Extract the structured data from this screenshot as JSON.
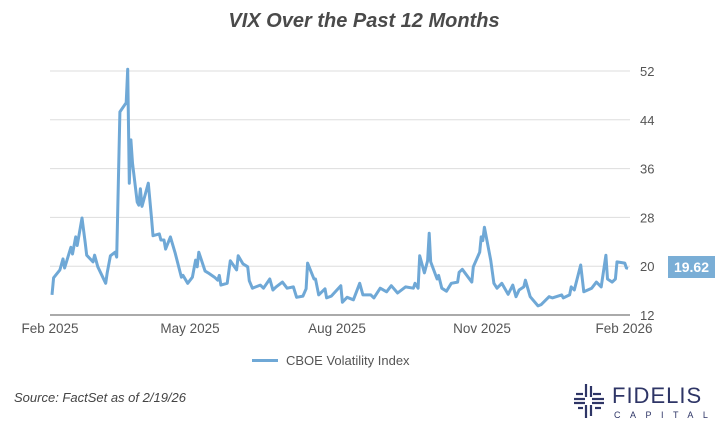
{
  "chart_data": {
    "type": "line",
    "title": "VIX Over the Past 12 Months",
    "xlabel": "",
    "ylabel": "",
    "ylim": [
      12,
      52
    ],
    "yticks": [
      "52",
      "44",
      "36",
      "28",
      "20",
      "12"
    ],
    "xticks": [
      "Feb 2025",
      "May 2025",
      "Aug 2025",
      "Nov 2025",
      "Feb 2026"
    ],
    "xlim": [
      "2025-02-19",
      "2026-02-19"
    ],
    "grid": true,
    "y_axis_side": "right",
    "legend_position": "bottom",
    "last_value_label": "19.62",
    "series": [
      {
        "name": "CBOE Volatility Index",
        "color": "#6fa8d6",
        "points": [
          [
            "2025-02-19",
            15.3
          ],
          [
            "2025-02-20",
            18.1
          ],
          [
            "2025-02-24",
            19.4
          ],
          [
            "2025-02-26",
            21.2
          ],
          [
            "2025-02-27",
            19.7
          ],
          [
            "2025-03-03",
            23.1
          ],
          [
            "2025-03-04",
            22.0
          ],
          [
            "2025-03-06",
            24.8
          ],
          [
            "2025-03-07",
            23.4
          ],
          [
            "2025-03-10",
            27.9
          ],
          [
            "2025-03-12",
            24.0
          ],
          [
            "2025-03-13",
            21.8
          ],
          [
            "2025-03-17",
            20.7
          ],
          [
            "2025-03-18",
            21.8
          ],
          [
            "2025-03-20",
            19.9
          ],
          [
            "2025-03-25",
            17.2
          ],
          [
            "2025-03-26",
            18.9
          ],
          [
            "2025-03-28",
            21.7
          ],
          [
            "2025-03-31",
            22.3
          ],
          [
            "2025-04-01",
            21.5
          ],
          [
            "2025-04-03",
            45.3
          ],
          [
            "2025-04-07",
            46.8
          ],
          [
            "2025-04-08",
            52.3
          ],
          [
            "2025-04-09",
            33.6
          ],
          [
            "2025-04-10",
            40.7
          ],
          [
            "2025-04-11",
            36.9
          ],
          [
            "2025-04-14",
            30.5
          ],
          [
            "2025-04-15",
            30.0
          ],
          [
            "2025-04-16",
            32.7
          ],
          [
            "2025-04-17",
            29.8
          ],
          [
            "2025-04-21",
            33.6
          ],
          [
            "2025-04-23",
            28.1
          ],
          [
            "2025-04-24",
            25.0
          ],
          [
            "2025-04-28",
            25.3
          ],
          [
            "2025-04-29",
            24.3
          ],
          [
            "2025-05-01",
            24.3
          ],
          [
            "2025-05-02",
            22.8
          ],
          [
            "2025-05-05",
            24.8
          ],
          [
            "2025-05-08",
            22.2
          ],
          [
            "2025-05-12",
            18.2
          ],
          [
            "2025-05-13",
            18.5
          ],
          [
            "2025-05-16",
            17.2
          ],
          [
            "2025-05-19",
            18.2
          ],
          [
            "2025-05-21",
            21.0
          ],
          [
            "2025-05-22",
            19.9
          ],
          [
            "2025-05-23",
            22.3
          ],
          [
            "2025-05-27",
            19.2
          ],
          [
            "2025-05-29",
            18.9
          ],
          [
            "2025-06-02",
            18.2
          ],
          [
            "2025-06-04",
            17.7
          ],
          [
            "2025-06-05",
            18.5
          ],
          [
            "2025-06-06",
            16.9
          ],
          [
            "2025-06-10",
            17.2
          ],
          [
            "2025-06-12",
            20.9
          ],
          [
            "2025-06-16",
            19.4
          ],
          [
            "2025-06-17",
            21.7
          ],
          [
            "2025-06-20",
            20.4
          ],
          [
            "2025-06-23",
            19.9
          ],
          [
            "2025-06-24",
            17.6
          ],
          [
            "2025-06-26",
            16.4
          ],
          [
            "2025-07-01",
            16.9
          ],
          [
            "2025-07-03",
            16.4
          ],
          [
            "2025-07-07",
            17.9
          ],
          [
            "2025-07-09",
            16.1
          ],
          [
            "2025-07-11",
            16.6
          ],
          [
            "2025-07-15",
            17.4
          ],
          [
            "2025-07-18",
            16.4
          ],
          [
            "2025-07-22",
            16.6
          ],
          [
            "2025-07-24",
            14.9
          ],
          [
            "2025-07-28",
            15.1
          ],
          [
            "2025-07-30",
            16.3
          ],
          [
            "2025-07-31",
            20.5
          ],
          [
            "2025-08-04",
            17.9
          ],
          [
            "2025-08-05",
            17.9
          ],
          [
            "2025-08-07",
            15.3
          ],
          [
            "2025-08-11",
            16.3
          ],
          [
            "2025-08-12",
            14.8
          ],
          [
            "2025-08-15",
            15.1
          ],
          [
            "2025-08-21",
            16.8
          ],
          [
            "2025-08-22",
            14.1
          ],
          [
            "2025-08-25",
            14.9
          ],
          [
            "2025-08-29",
            14.5
          ],
          [
            "2025-09-02",
            17.2
          ],
          [
            "2025-09-04",
            15.3
          ],
          [
            "2025-09-05",
            15.3
          ],
          [
            "2025-09-09",
            15.3
          ],
          [
            "2025-09-11",
            14.8
          ],
          [
            "2025-09-15",
            16.4
          ],
          [
            "2025-09-19",
            15.8
          ],
          [
            "2025-09-22",
            16.8
          ],
          [
            "2025-09-26",
            15.6
          ],
          [
            "2025-10-01",
            16.6
          ],
          [
            "2025-10-06",
            16.4
          ],
          [
            "2025-10-07",
            17.2
          ],
          [
            "2025-10-09",
            16.4
          ],
          [
            "2025-10-10",
            21.7
          ],
          [
            "2025-10-13",
            18.9
          ],
          [
            "2025-10-15",
            20.9
          ],
          [
            "2025-10-16",
            25.4
          ],
          [
            "2025-10-17",
            20.7
          ],
          [
            "2025-10-21",
            17.9
          ],
          [
            "2025-10-22",
            18.5
          ],
          [
            "2025-10-24",
            16.4
          ],
          [
            "2025-10-27",
            15.9
          ],
          [
            "2025-10-30",
            17.2
          ],
          [
            "2025-11-03",
            17.4
          ],
          [
            "2025-11-04",
            19.0
          ],
          [
            "2025-11-06",
            19.5
          ],
          [
            "2025-11-12",
            17.4
          ],
          [
            "2025-11-13",
            19.9
          ],
          [
            "2025-11-17",
            22.3
          ],
          [
            "2025-11-18",
            24.8
          ],
          [
            "2025-11-19",
            24.2
          ],
          [
            "2025-11-20",
            26.4
          ],
          [
            "2025-11-24",
            21.0
          ],
          [
            "2025-11-26",
            17.2
          ],
          [
            "2025-11-28",
            16.4
          ],
          [
            "2025-12-01",
            17.2
          ],
          [
            "2025-12-05",
            15.4
          ],
          [
            "2025-12-08",
            16.9
          ],
          [
            "2025-12-10",
            15.0
          ],
          [
            "2025-12-12",
            16.1
          ],
          [
            "2025-12-15",
            16.6
          ],
          [
            "2025-12-16",
            17.7
          ],
          [
            "2025-12-19",
            15.0
          ],
          [
            "2025-12-24",
            13.5
          ],
          [
            "2025-12-26",
            13.7
          ],
          [
            "2025-12-31",
            15.0
          ],
          [
            "2026-01-02",
            14.8
          ],
          [
            "2026-01-08",
            15.3
          ],
          [
            "2026-01-09",
            14.8
          ],
          [
            "2026-01-13",
            15.3
          ],
          [
            "2026-01-14",
            16.6
          ],
          [
            "2026-01-16",
            16.1
          ],
          [
            "2026-01-20",
            20.2
          ],
          [
            "2026-01-22",
            15.8
          ],
          [
            "2026-01-27",
            16.4
          ],
          [
            "2026-01-30",
            17.4
          ],
          [
            "2026-02-02",
            16.6
          ],
          [
            "2026-02-05",
            21.8
          ],
          [
            "2026-02-06",
            17.9
          ],
          [
            "2026-02-09",
            17.4
          ],
          [
            "2026-02-11",
            17.9
          ],
          [
            "2026-02-12",
            20.7
          ],
          [
            "2026-02-17",
            20.5
          ],
          [
            "2026-02-18",
            19.7
          ],
          [
            "2026-02-19",
            19.62
          ]
        ]
      }
    ]
  },
  "source": "Source: FactSet as of 2/19/26",
  "logo": {
    "name": "FIDELIS",
    "sub": "CAPITAL",
    "color": "#2e3566"
  }
}
